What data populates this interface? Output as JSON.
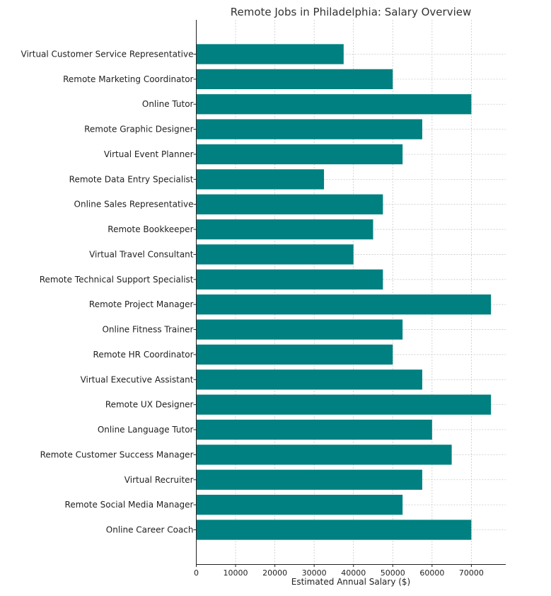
{
  "chart_data": {
    "type": "bar",
    "orientation": "horizontal",
    "title": "Remote Jobs in Philadelphia: Salary Overview",
    "xlabel": "Estimated Annual Salary ($)",
    "ylabel": "",
    "xlim": [
      0,
      78750
    ],
    "xticks": [
      0,
      10000,
      20000,
      30000,
      40000,
      50000,
      60000,
      70000
    ],
    "grid": true,
    "bar_color": "#008080",
    "categories": [
      "Virtual Customer Service Representative",
      "Remote Marketing Coordinator",
      "Online Tutor",
      "Remote Graphic Designer",
      "Virtual Event Planner",
      "Remote Data Entry Specialist",
      "Online Sales Representative",
      "Remote Bookkeeper",
      "Virtual Travel Consultant",
      "Remote Technical Support Specialist",
      "Remote Project Manager",
      "Online Fitness Trainer",
      "Remote HR Coordinator",
      "Virtual Executive Assistant",
      "Remote UX Designer",
      "Online Language Tutor",
      "Remote Customer Success Manager",
      "Virtual Recruiter",
      "Remote Social Media Manager",
      "Online Career Coach"
    ],
    "values": [
      37500,
      50000,
      70000,
      57500,
      52500,
      32500,
      47500,
      45000,
      40000,
      47500,
      75000,
      52500,
      50000,
      57500,
      75000,
      60000,
      65000,
      57500,
      52500,
      70000
    ]
  }
}
